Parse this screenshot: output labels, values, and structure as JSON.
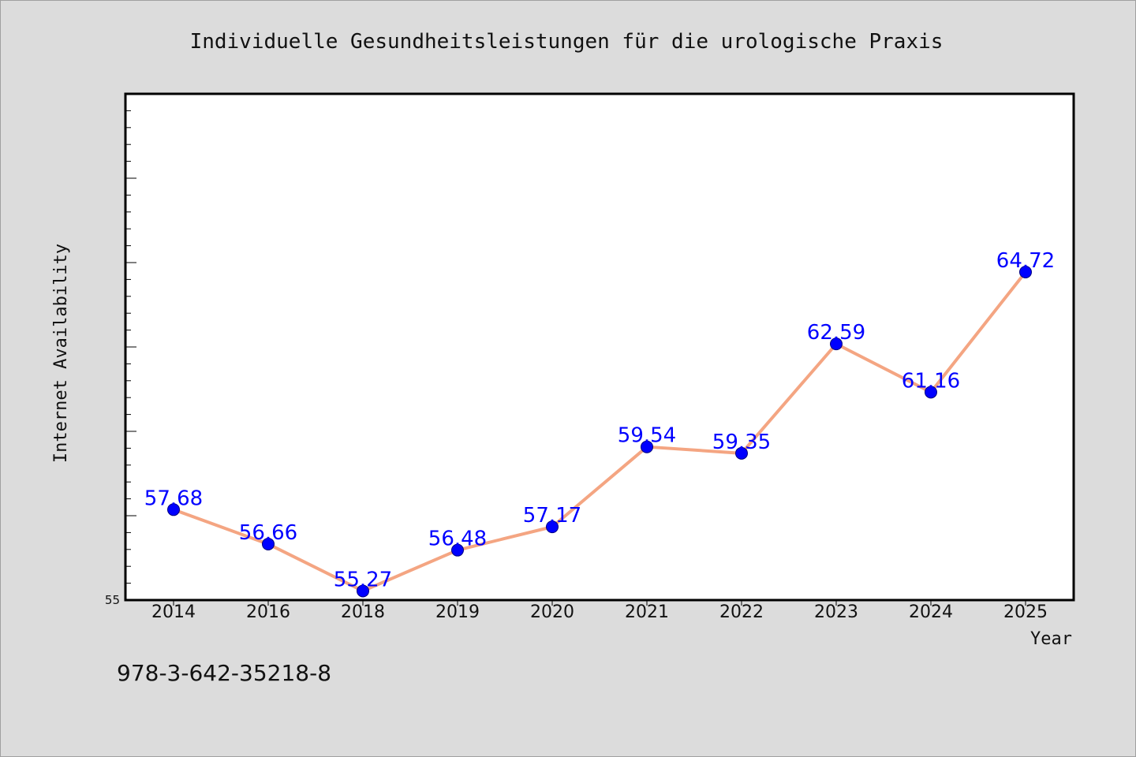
{
  "colors": {
    "background": "#dcdcdc",
    "plot_background": "#ffffff",
    "line": "#f4a582",
    "marker": "#0000ff",
    "data_label": "#0000ff"
  },
  "footer": {
    "isbn": "978-3-642-35218-8"
  },
  "chart_data": {
    "type": "line",
    "title": "Individuelle Gesundheitsleistungen für die urologische Praxis",
    "xlabel": "Year",
    "ylabel": "Internet Availability",
    "categories": [
      "2014",
      "2016",
      "2018",
      "2019",
      "2020",
      "2021",
      "2022",
      "2023",
      "2024",
      "2025"
    ],
    "series": [
      {
        "values": [
          57.68,
          56.66,
          55.27,
          56.48,
          57.17,
          59.54,
          59.35,
          62.59,
          61.16,
          64.72
        ],
        "labels": [
          "57.68",
          "56.66",
          "55.27",
          "56.48",
          "57.17",
          "59.54",
          "59.35",
          "62.59",
          "61.16",
          "64.72"
        ]
      }
    ],
    "ylim": [
      55,
      70
    ],
    "y_tick_labels": [
      "55"
    ],
    "grid": false,
    "legend": "none",
    "marker": "circle"
  }
}
